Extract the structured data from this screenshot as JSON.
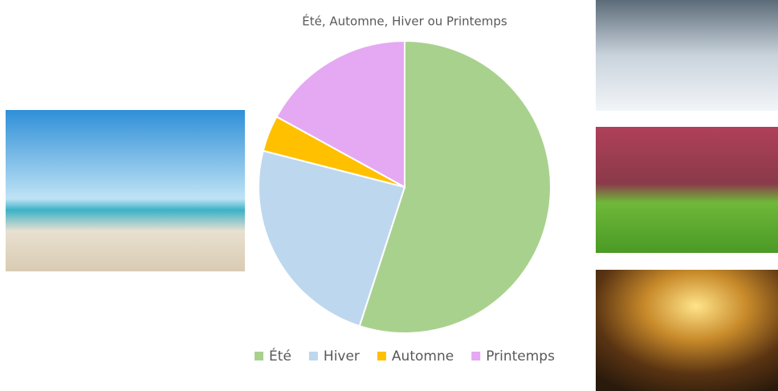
{
  "chart_data": {
    "type": "pie",
    "title": "Été, Automne, Hiver ou Printemps",
    "categories": [
      "Été",
      "Hiver",
      "Automne",
      "Printemps"
    ],
    "values": [
      55,
      24,
      4,
      17
    ],
    "colors": [
      "#a9d18e",
      "#bdd7ee",
      "#ffc000",
      "#e5a8f2"
    ],
    "legend": "bottom"
  }
}
